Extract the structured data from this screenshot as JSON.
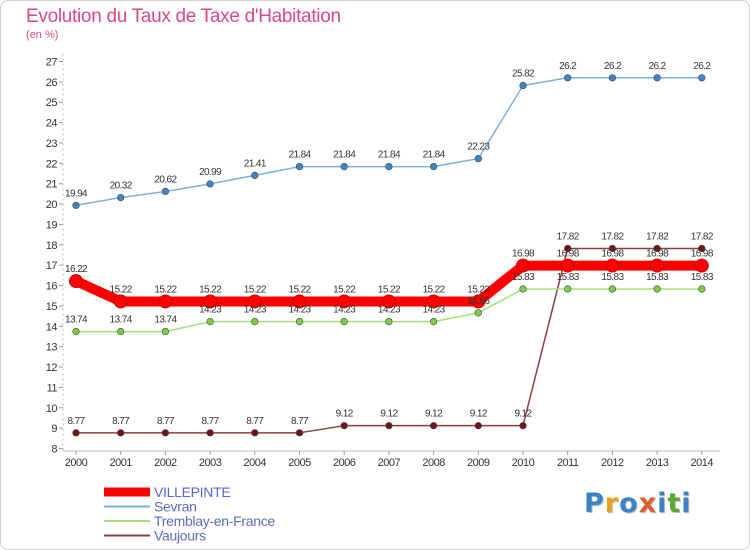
{
  "title": "Evolution du Taux de Taxe d'Habitation",
  "unit": "(en %)",
  "logo": {
    "text": "Proxiti",
    "letters": [
      "P",
      "r",
      "o",
      "x",
      "i",
      "t",
      "i"
    ],
    "colors": [
      "#3b82c6",
      "#e8a21a",
      "#3b82c6",
      "#e25c2a",
      "#3b82c6",
      "#5aa832",
      "#3b82c6"
    ]
  },
  "chart_data": {
    "type": "line",
    "title": "Evolution du Taux de Taxe d'Habitation",
    "ylabel": "(en %)",
    "xlabel": "",
    "categories": [
      "2000",
      "2001",
      "2002",
      "2003",
      "2004",
      "2005",
      "2006",
      "2007",
      "2008",
      "2009",
      "2010",
      "2011",
      "2012",
      "2013",
      "2014"
    ],
    "ylim": [
      8,
      27
    ],
    "yticks": [
      8,
      9,
      10,
      11,
      12,
      13,
      14,
      15,
      16,
      17,
      18,
      19,
      20,
      21,
      22,
      23,
      24,
      25,
      26,
      27
    ],
    "grid": false,
    "legend_position": "bottom-left",
    "series": [
      {
        "name": "VILLEPINTE",
        "color": "#ff0000",
        "marker_color": "#dd0000",
        "thick": true,
        "values": [
          16.22,
          15.22,
          15.22,
          15.22,
          15.22,
          15.22,
          15.22,
          15.22,
          15.22,
          15.22,
          16.98,
          16.98,
          16.98,
          16.98,
          16.98
        ],
        "labels": [
          "16.22",
          "15.22",
          "15.22",
          "15.22",
          "15.22",
          "15.22",
          "15.22",
          "15.22",
          "15.22",
          "15.22",
          "16.98",
          "16.98",
          "16.98",
          "16.98",
          "16.98"
        ]
      },
      {
        "name": "Sevran",
        "color": "#7fb0dd",
        "marker_color": "#3f86c6",
        "thick": false,
        "values": [
          19.94,
          20.32,
          20.62,
          20.99,
          21.41,
          21.84,
          21.84,
          21.84,
          21.84,
          22.23,
          25.82,
          26.2,
          26.2,
          26.2,
          26.2
        ],
        "labels": [
          "19.94",
          "20.32",
          "20.62",
          "20.99",
          "21.41",
          "21.84",
          "21.84",
          "21.84",
          "21.84",
          "22.23",
          "25.82",
          "26.2",
          "26.2",
          "26.2",
          "26.2"
        ]
      },
      {
        "name": "Tremblay-en-France",
        "color": "#a6e07a",
        "marker_color": "#7ccf40",
        "thick": false,
        "values": [
          13.74,
          13.74,
          13.74,
          14.23,
          14.23,
          14.23,
          14.23,
          14.23,
          14.23,
          14.66,
          15.83,
          15.83,
          15.83,
          15.83,
          15.83
        ],
        "labels": [
          "13.74",
          "13.74",
          "13.74",
          "14.23",
          "14.23",
          "14.23",
          "14.23",
          "14.23",
          "14.23",
          "14.66",
          "15.83",
          "15.83",
          "15.83",
          "15.83",
          "15.83"
        ]
      },
      {
        "name": "Vaujours",
        "color": "#8a4040",
        "marker_color": "#6e1515",
        "thick": false,
        "values": [
          8.77,
          8.77,
          8.77,
          8.77,
          8.77,
          8.77,
          9.12,
          9.12,
          9.12,
          9.12,
          9.12,
          17.82,
          17.82,
          17.82,
          17.82
        ],
        "labels": [
          "8.77",
          "8.77",
          "8.77",
          "8.77",
          "8.77",
          "8.77",
          "9.12",
          "9.12",
          "9.12",
          "9.12",
          "9.12",
          "17.82",
          "17.82",
          "17.82",
          "17.82"
        ]
      }
    ]
  }
}
